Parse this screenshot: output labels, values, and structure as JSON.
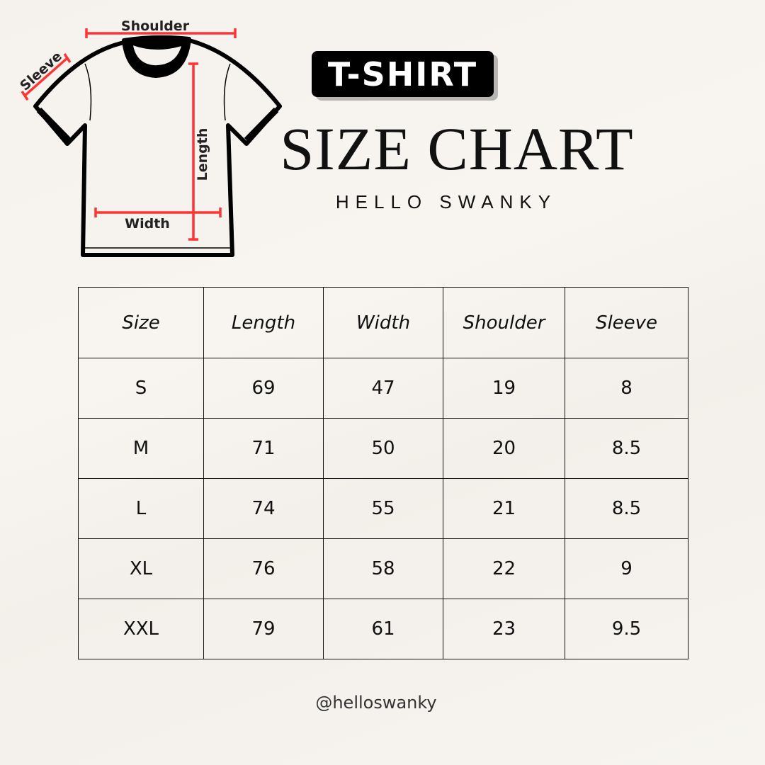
{
  "diagram": {
    "shoulder": "Shoulder",
    "sleeve": "Sleeve",
    "length": "Length",
    "width": "Width",
    "measure_color": "#ff3333"
  },
  "header": {
    "tag": "T-SHIRT",
    "title": "SIZE CHART",
    "brand": "HELLO SWANKY"
  },
  "table": {
    "columns": [
      "Size",
      "Length",
      "Width",
      "Shoulder",
      "Sleeve"
    ],
    "rows": [
      [
        "S",
        "69",
        "47",
        "19",
        "8"
      ],
      [
        "M",
        "71",
        "50",
        "20",
        "8.5"
      ],
      [
        "L",
        "74",
        "55",
        "21",
        "8.5"
      ],
      [
        "XL",
        "76",
        "58",
        "22",
        "9"
      ],
      [
        "XXL",
        "79",
        "61",
        "23",
        "9.5"
      ]
    ]
  },
  "footer": {
    "handle": "@helloswanky"
  }
}
